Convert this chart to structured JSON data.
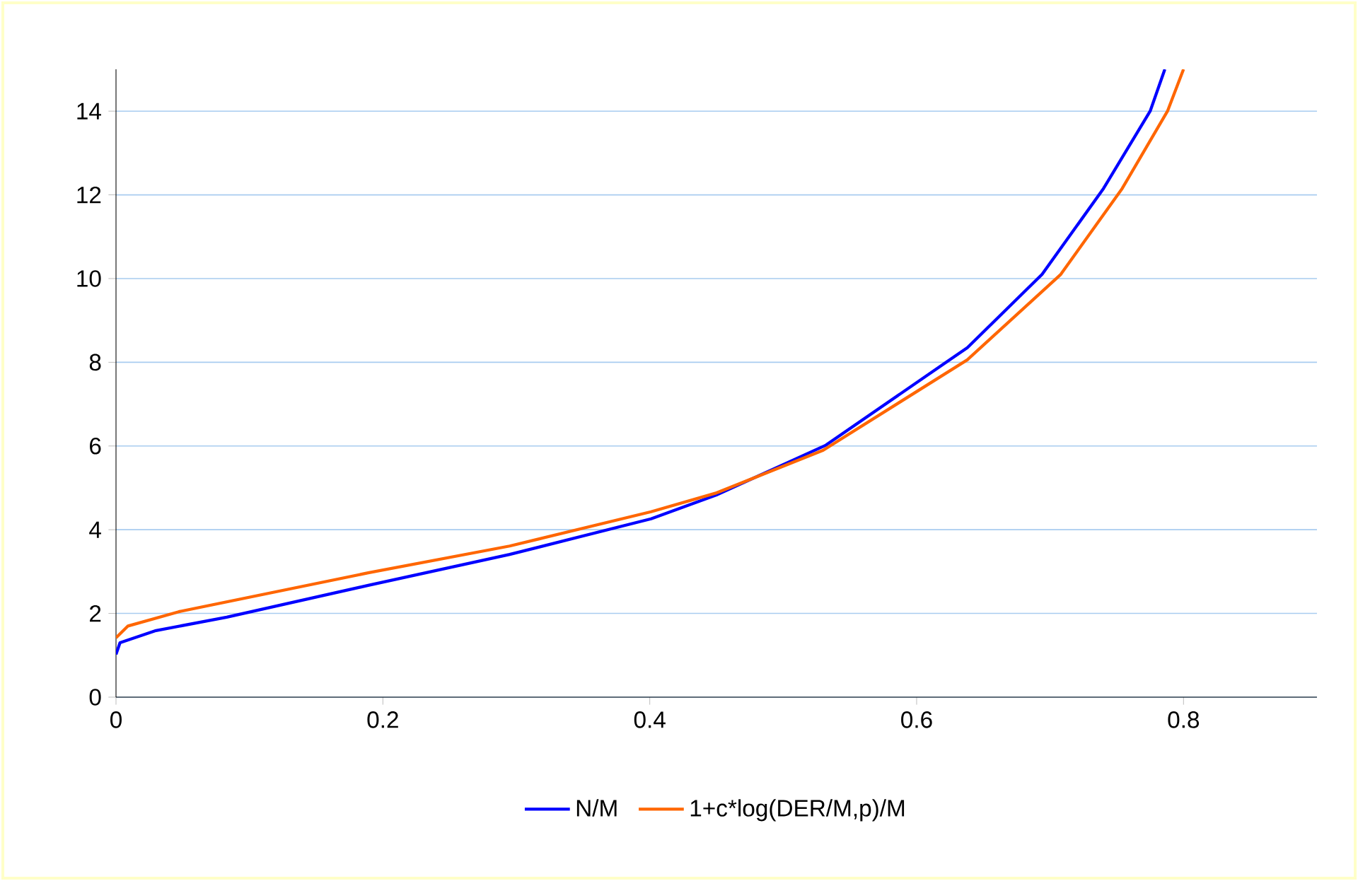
{
  "chart_data": {
    "type": "line",
    "xlim": [
      0,
      0.9
    ],
    "ylim": [
      0,
      15
    ],
    "xticks": [
      0,
      0.2,
      0.4,
      0.6,
      0.8
    ],
    "yticks": [
      0,
      2,
      4,
      6,
      8,
      10,
      12,
      14
    ],
    "grid": "y",
    "legend": "bottom",
    "marker": "none",
    "line_style": "solid",
    "series": [
      {
        "name": "N/M",
        "color": "#0000ff",
        "x": [
          0,
          0.003,
          0.03,
          0.083,
          0.189,
          0.295,
          0.401,
          0.45,
          0.532,
          0.638,
          0.694,
          0.74,
          0.775,
          0.786
        ],
        "values": [
          1.02,
          1.3,
          1.59,
          1.91,
          2.67,
          3.41,
          4.26,
          4.83,
          6.02,
          8.35,
          10.1,
          12.15,
          14,
          15
        ]
      },
      {
        "name": "1+c*log(DER/M,p)/M",
        "color": "#ff6600",
        "x": [
          0,
          0.009,
          0.047,
          0.189,
          0.295,
          0.401,
          0.45,
          0.53,
          0.638,
          0.708,
          0.754,
          0.788,
          0.8
        ],
        "values": [
          1.42,
          1.7,
          2.04,
          2.97,
          3.61,
          4.43,
          4.88,
          5.9,
          8.06,
          10.1,
          12.15,
          14,
          15
        ]
      }
    ]
  }
}
